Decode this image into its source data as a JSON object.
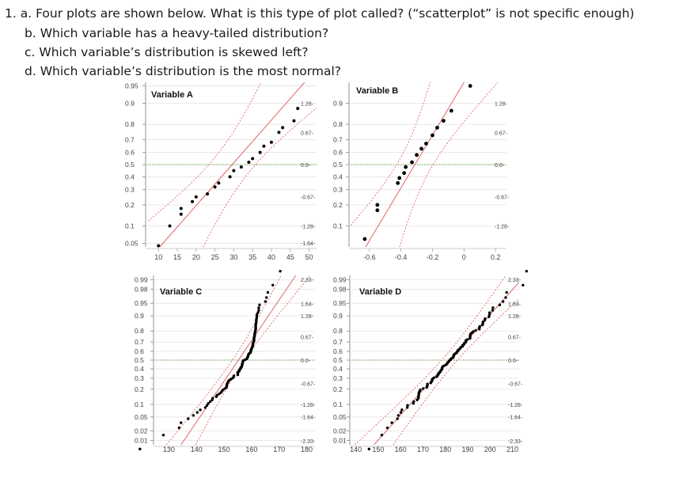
{
  "questions": {
    "a": "1. a. Four plots are shown below. What is this type of plot called? (“scatterplot” is not specific enough)",
    "b": "b. Which variable has a heavy-tailed distribution?",
    "c": "c. Which variable’s distribution is skewed left?",
    "d": "d. Which variable’s distribution is the most normal?"
  },
  "chart_data": [
    {
      "type": "scatter",
      "title": "Variable A",
      "x": [
        10,
        13,
        16,
        16,
        19,
        20,
        23,
        25,
        26,
        29,
        30,
        32,
        34,
        35,
        37,
        38,
        40,
        42,
        43,
        46,
        47
      ],
      "y": [
        0.045,
        0.1,
        0.15,
        0.18,
        0.22,
        0.25,
        0.27,
        0.32,
        0.35,
        0.4,
        0.45,
        0.48,
        0.52,
        0.55,
        0.6,
        0.65,
        0.68,
        0.75,
        0.78,
        0.82,
        0.88
      ],
      "xticks": [
        "10",
        "15",
        "20",
        "25",
        "30",
        "35",
        "40",
        "45",
        "50"
      ],
      "yticks": [
        "0.95",
        "0.9",
        "0.8",
        "0.7",
        "0.6",
        "0.5",
        "0.4",
        "0.3",
        "0.2",
        "0.1",
        "0.05"
      ],
      "right_ticks": [
        "1.28",
        "0.67",
        "0.0",
        "-0.67",
        "-1.28",
        "-1.64"
      ],
      "xlim": [
        7,
        52
      ]
    },
    {
      "type": "scatter",
      "title": "Variable B",
      "x": [
        -0.63,
        -0.55,
        -0.55,
        -0.42,
        -0.41,
        -0.38,
        -0.37,
        -0.33,
        -0.3,
        -0.27,
        -0.24,
        -0.2,
        -0.17,
        -0.13,
        -0.08,
        0.04
      ],
      "y": [
        0.06,
        0.17,
        0.2,
        0.35,
        0.39,
        0.43,
        0.48,
        0.52,
        0.58,
        0.63,
        0.67,
        0.73,
        0.78,
        0.82,
        0.87,
        0.95
      ],
      "xticks": [
        "-0.6",
        "-0.4",
        "-0.2",
        "0",
        "0.2"
      ],
      "yticks": [
        "0.9",
        "0.8",
        "0.7",
        "0.6",
        "0.5",
        "0.4",
        "0.3",
        "0.2",
        "0.1"
      ],
      "right_ticks": [
        "1.28",
        "0.67",
        "0.0",
        "-0.67",
        "-1.28"
      ],
      "xlim": [
        -0.72,
        0.27
      ]
    },
    {
      "type": "scatter",
      "title": "Variable C",
      "x": [],
      "y": [],
      "xticks": [
        "130",
        "140",
        "150",
        "160",
        "170",
        "180"
      ],
      "yticks": [
        "0.99",
        "0.98",
        "0.95",
        "0.9",
        "0.8",
        "0.7",
        "0.6",
        "0.5",
        "0.4",
        "0.3",
        "0.2",
        "0.1",
        "0.05",
        "0.02",
        "0.01"
      ],
      "right_ticks": [
        "2.33",
        "1.64",
        "1.28",
        "0.67",
        "0.0",
        "-0.67",
        "-1.28",
        "-1.64",
        "-2.33"
      ],
      "xlim": [
        125,
        183
      ]
    },
    {
      "type": "scatter",
      "title": "Variable D",
      "x": [],
      "y": [],
      "xticks": [
        "140",
        "150",
        "160",
        "170",
        "180",
        "190",
        "200",
        "210"
      ],
      "yticks": [
        "0.99",
        "0.98",
        "0.95",
        "0.9",
        "0.8",
        "0.7",
        "0.6",
        "0.5",
        "0.4",
        "0.3",
        "0.2",
        "0.1",
        "0.05",
        "0.02",
        "0.01"
      ],
      "right_ticks": [
        "2.33",
        "1.64",
        "1.28",
        "0.67",
        "0.0",
        "-0.67",
        "-1.28",
        "-1.64",
        "-2.33"
      ],
      "xlim": [
        138,
        213
      ]
    }
  ]
}
